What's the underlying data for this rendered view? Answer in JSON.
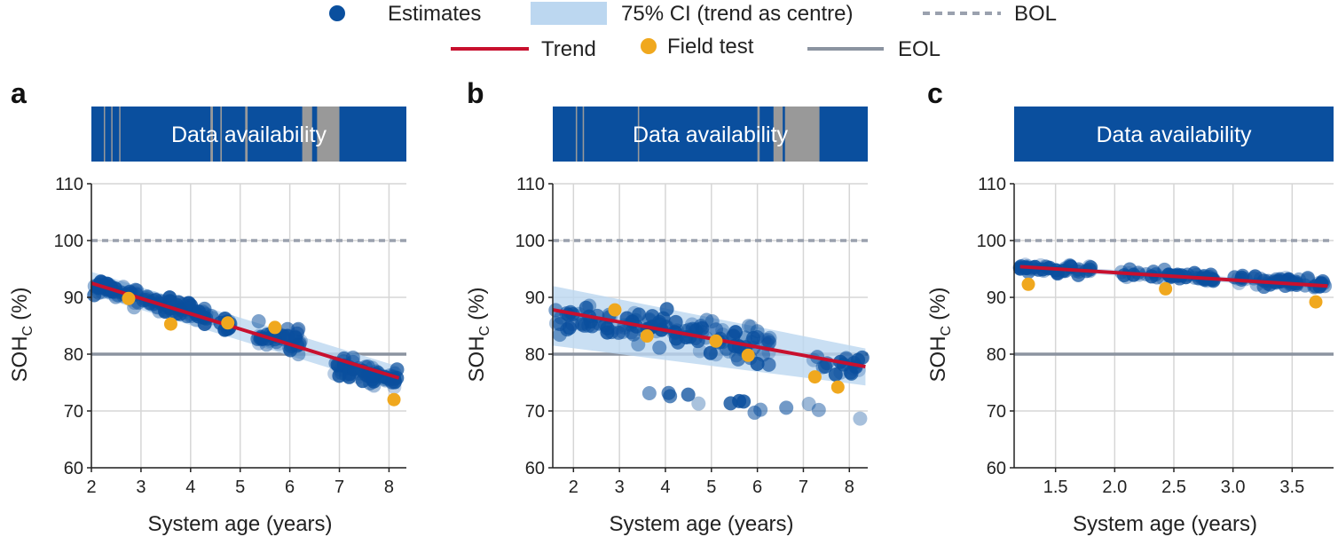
{
  "legend": {
    "estimates": "Estimates",
    "ci": "75% CI (trend as centre)",
    "bol": "BOL",
    "trend": "Trend",
    "field_test": "Field test",
    "eol": "EOL"
  },
  "colors": {
    "estimates": "#0a4f9e",
    "ci": "#bcd7f0",
    "trend": "#c8102e",
    "field_test": "#f0a81e",
    "bol": "#9aa1ae",
    "eol": "#8b93a0",
    "availability": "#0a4f9e",
    "gap": "#999999",
    "grid": "#d6d6d6"
  },
  "chart_data": [
    {
      "panel": "a",
      "type": "scatter",
      "availability_label": "Data availability",
      "availability_gaps": [
        [
          2.25,
          2.27
        ],
        [
          2.4,
          2.42
        ],
        [
          2.56,
          2.58
        ],
        [
          4.4,
          4.45
        ],
        [
          4.6,
          4.63
        ],
        [
          5.1,
          5.15
        ],
        [
          6.25,
          6.45
        ],
        [
          6.55,
          7.0
        ]
      ],
      "xlabel": "System age (years)",
      "ylabel": "SOH",
      "ylabel_sub": "C",
      "ylabel_unit": "(%)",
      "xlim": [
        2,
        8.35
      ],
      "ylim": [
        60,
        110
      ],
      "xticks": [
        2,
        3,
        4,
        5,
        6,
        7,
        8
      ],
      "xtick_labels": [
        "2",
        "3",
        "4",
        "5",
        "6",
        "7",
        "8"
      ],
      "yticks": [
        60,
        70,
        80,
        90,
        100,
        110
      ],
      "ytick_labels": [
        "60",
        "70",
        "80",
        "90",
        "100",
        "110"
      ],
      "bol": 100,
      "eol": 80,
      "trend": {
        "x": [
          2,
          8.2
        ],
        "y": [
          92.5,
          75.8
        ]
      },
      "ci": {
        "x": [
          2,
          8.2
        ],
        "lower": [
          90.5,
          73.8
        ],
        "upper": [
          94.5,
          77.8
        ]
      },
      "estimate_clusters": [
        {
          "x0": 2.0,
          "x1": 2.6,
          "y": 91.5,
          "spread": 2.0,
          "n": 34
        },
        {
          "x0": 2.6,
          "x1": 3.6,
          "y": 89.5,
          "spread": 2.2,
          "n": 40
        },
        {
          "x0": 3.6,
          "x1": 4.45,
          "y": 87.5,
          "spread": 2.6,
          "n": 40
        },
        {
          "x0": 4.6,
          "x1": 4.8,
          "y": 85.0,
          "spread": 2.0,
          "n": 12
        },
        {
          "x0": 5.35,
          "x1": 6.25,
          "y": 83.0,
          "spread": 3.2,
          "n": 42
        },
        {
          "x0": 6.9,
          "x1": 8.2,
          "y": 76.5,
          "spread": 2.8,
          "n": 60
        }
      ],
      "field_test": {
        "x": [
          2.75,
          3.6,
          4.75,
          5.7,
          8.1
        ],
        "y": [
          89.8,
          85.3,
          85.5,
          84.7,
          72.0
        ]
      }
    },
    {
      "panel": "b",
      "type": "scatter",
      "availability_label": "Data availability",
      "availability_gaps": [
        [
          2.05,
          2.08
        ],
        [
          2.2,
          2.23
        ],
        [
          3.4,
          3.43
        ],
        [
          6.0,
          6.05
        ],
        [
          6.35,
          6.55
        ],
        [
          6.6,
          7.35
        ]
      ],
      "xlabel": "System age (years)",
      "ylabel": "SOH",
      "ylabel_sub": "C",
      "ylabel_unit": "(%)",
      "xlim": [
        1.55,
        8.4
      ],
      "ylim": [
        60,
        110
      ],
      "xticks": [
        2,
        3,
        4,
        5,
        6,
        7,
        8
      ],
      "xtick_labels": [
        "2",
        "3",
        "4",
        "5",
        "6",
        "7",
        "8"
      ],
      "yticks": [
        60,
        70,
        80,
        90,
        100,
        110
      ],
      "ytick_labels": [
        "60",
        "70",
        "80",
        "90",
        "100",
        "110"
      ],
      "bol": 100,
      "eol": 80,
      "trend": {
        "x": [
          1.55,
          8.35
        ],
        "y": [
          87.8,
          77.8
        ]
      },
      "ci": {
        "x": [
          1.55,
          8.35
        ],
        "lower": [
          81.5,
          74.5
        ],
        "upper": [
          92.0,
          81.0
        ]
      },
      "estimate_clusters": [
        {
          "x0": 1.6,
          "x1": 3.4,
          "y": 86.0,
          "spread": 4.0,
          "n": 45
        },
        {
          "x0": 3.4,
          "x1": 5.2,
          "y": 84.0,
          "spread": 4.5,
          "n": 50
        },
        {
          "x0": 5.2,
          "x1": 6.3,
          "y": 82.0,
          "spread": 5.0,
          "n": 35
        },
        {
          "x0": 7.2,
          "x1": 8.35,
          "y": 78.0,
          "spread": 3.5,
          "n": 20
        },
        {
          "x0": 2.0,
          "x1": 8.3,
          "y": 72.0,
          "spread": 2.0,
          "n": 14
        }
      ],
      "field_test": {
        "x": [
          2.9,
          3.6,
          5.1,
          5.8,
          7.25,
          7.75
        ],
        "y": [
          87.8,
          83.2,
          82.3,
          79.8,
          76.0,
          74.2
        ]
      }
    },
    {
      "panel": "c",
      "type": "scatter",
      "availability_label": "Data availability",
      "availability_gaps": [],
      "xlabel": "System age (years)",
      "ylabel": "SOH",
      "ylabel_sub": "C",
      "ylabel_unit": "(%)",
      "xlim": [
        1.15,
        3.85
      ],
      "ylim": [
        60,
        110
      ],
      "xticks": [
        1.5,
        2.0,
        2.5,
        3.0,
        3.5
      ],
      "xtick_labels": [
        "1.5",
        "2.0",
        "2.5",
        "3.0",
        "3.5"
      ],
      "yticks": [
        60,
        70,
        80,
        90,
        100,
        110
      ],
      "ytick_labels": [
        "60",
        "70",
        "80",
        "90",
        "100",
        "110"
      ],
      "bol": 100,
      "eol": 80,
      "trend": {
        "x": [
          1.2,
          3.8
        ],
        "y": [
          95.4,
          92.0
        ]
      },
      "ci": {
        "x": [
          1.2,
          3.8
        ],
        "lower": [
          94.9,
          91.5
        ],
        "upper": [
          95.9,
          92.5
        ]
      },
      "estimate_clusters": [
        {
          "x0": 1.2,
          "x1": 1.8,
          "y": 95.0,
          "spread": 1.1,
          "n": 40
        },
        {
          "x0": 2.05,
          "x1": 2.85,
          "y": 93.8,
          "spread": 1.2,
          "n": 50
        },
        {
          "x0": 3.0,
          "x1": 3.8,
          "y": 92.6,
          "spread": 1.3,
          "n": 50
        }
      ],
      "field_test": {
        "x": [
          1.27,
          2.43,
          3.7
        ],
        "y": [
          92.3,
          91.5,
          89.2
        ]
      }
    }
  ],
  "panel_labels": [
    "a",
    "b",
    "c"
  ]
}
